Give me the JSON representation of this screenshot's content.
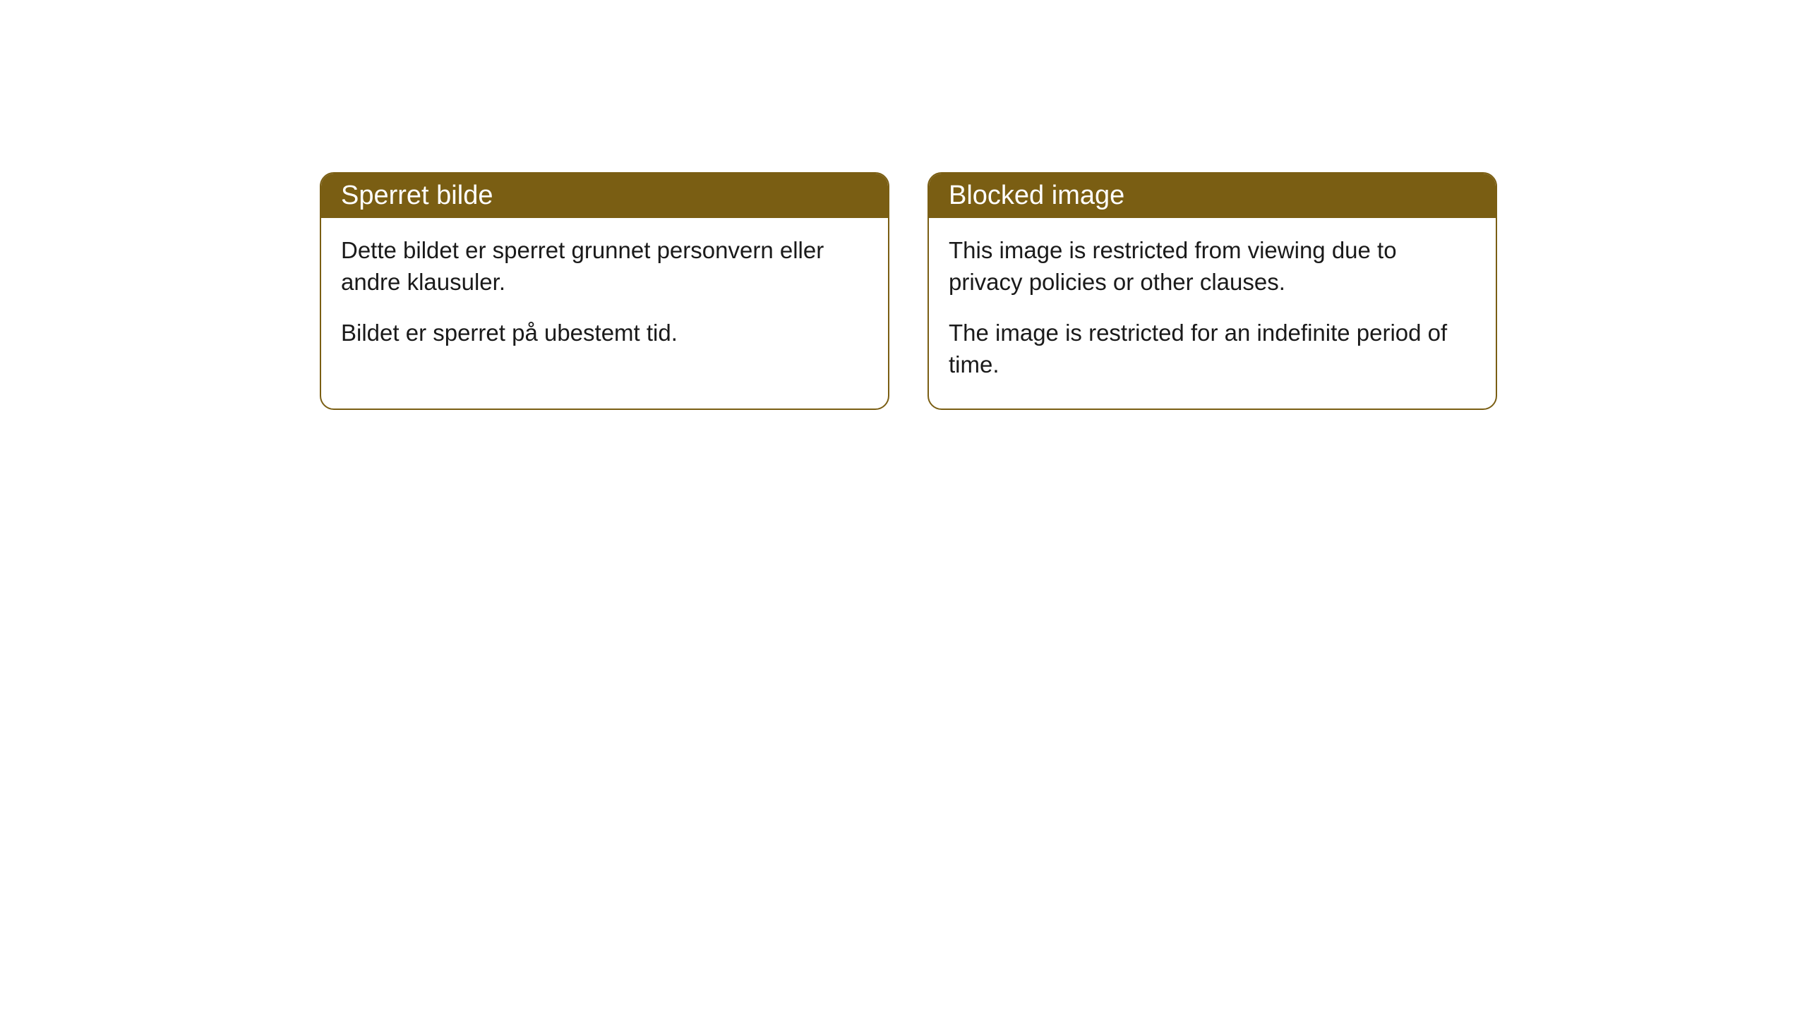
{
  "cards": [
    {
      "title": "Sperret bilde",
      "paragraph1": "Dette bildet er sperret grunnet personvern eller andre klausuler.",
      "paragraph2": "Bildet er sperret på ubestemt tid."
    },
    {
      "title": "Blocked image",
      "paragraph1": "This image is restricted from viewing due to privacy policies or other clauses.",
      "paragraph2": "The image is restricted for an indefinite period of time."
    }
  ],
  "style": {
    "header_bg": "#7a5e13",
    "header_color": "#ffffff",
    "border_color": "#7a5e13",
    "body_bg": "#ffffff",
    "text_color": "#1a1a1a",
    "border_radius": 20,
    "title_fontsize": 38,
    "body_fontsize": 33
  }
}
